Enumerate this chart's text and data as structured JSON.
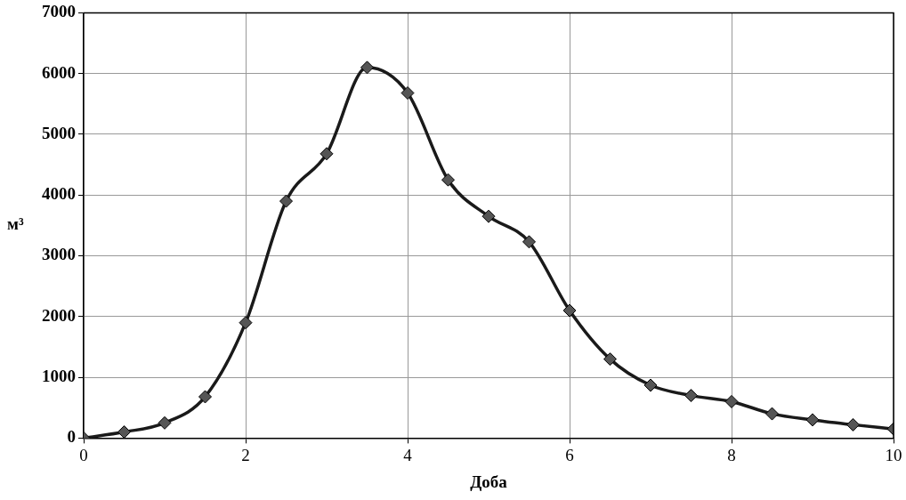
{
  "chart_data": {
    "type": "line",
    "xlabel": "Доба",
    "ylabel": "м³",
    "x": [
      0,
      0.5,
      1,
      1.5,
      2,
      2.5,
      3,
      3.5,
      4,
      4.5,
      5,
      5.5,
      6,
      6.5,
      7,
      7.5,
      8,
      8.5,
      9,
      9.5,
      10
    ],
    "series": [
      {
        "color": "#1a1a1a",
        "values": [
          0,
          100,
          250,
          680,
          1900,
          3900,
          4680,
          6100,
          5680,
          4250,
          3650,
          3230,
          2100,
          1300,
          870,
          700,
          600,
          400,
          300,
          220,
          150
        ]
      }
    ],
    "xlim": [
      0,
      10
    ],
    "xticks": [
      0,
      2,
      4,
      6,
      8,
      10
    ],
    "ylim": [
      0,
      7000
    ],
    "yticks": [
      0,
      1000,
      2000,
      3000,
      4000,
      5000,
      6000,
      7000
    ],
    "grid": true,
    "legend": false,
    "marker": "diamond",
    "line_style": "solid"
  }
}
